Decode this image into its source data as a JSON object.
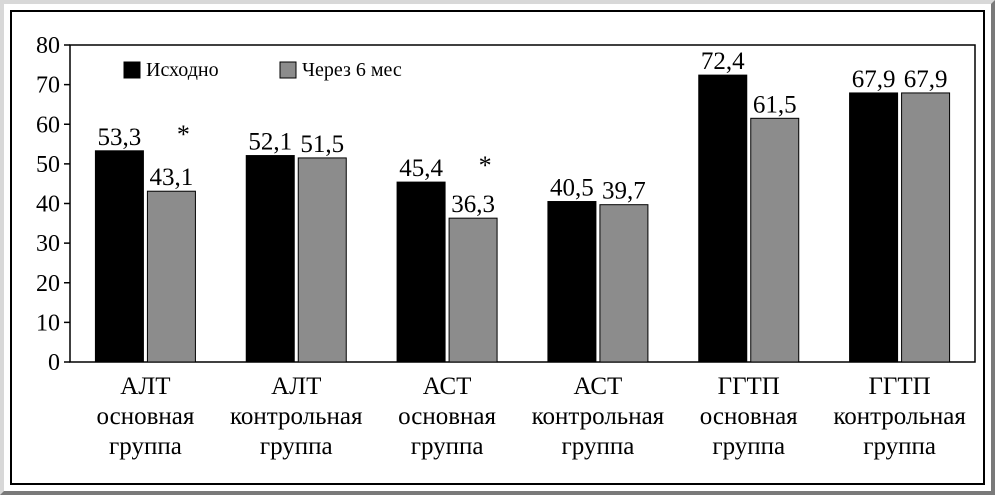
{
  "chart_data": {
    "type": "bar",
    "title": "",
    "xlabel": "",
    "ylabel": "",
    "ylim": [
      0,
      80
    ],
    "yticks": [
      0,
      10,
      20,
      30,
      40,
      50,
      60,
      70,
      80
    ],
    "grid": false,
    "legend_position": "top-left",
    "categories": [
      [
        "АЛТ",
        "основная",
        "группа"
      ],
      [
        "АЛТ",
        "контрольная",
        "группа"
      ],
      [
        "АСТ",
        "основная",
        "группа"
      ],
      [
        "АСТ",
        "контрольная",
        "группа"
      ],
      [
        "ГГТП",
        "основная",
        "группа"
      ],
      [
        "ГГТП",
        "контрольная",
        "группа"
      ]
    ],
    "series": [
      {
        "name": "Исходно",
        "color": "#000000",
        "values": [
          53.3,
          52.1,
          45.4,
          40.5,
          72.4,
          67.9
        ],
        "labels": [
          "53,3",
          "52,1",
          "45,4",
          "40,5",
          "72,4",
          "67,9"
        ]
      },
      {
        "name": "Через 6 мес",
        "color": "#8c8c8c",
        "values": [
          43.1,
          51.5,
          36.3,
          39.7,
          61.5,
          67.9
        ],
        "labels": [
          "43,1",
          "51,5",
          "36,3",
          "39,7",
          "61,5",
          "67,9"
        ]
      }
    ],
    "annotations": [
      {
        "category_index": 0,
        "text": "*"
      },
      {
        "category_index": 2,
        "text": "*"
      }
    ]
  }
}
